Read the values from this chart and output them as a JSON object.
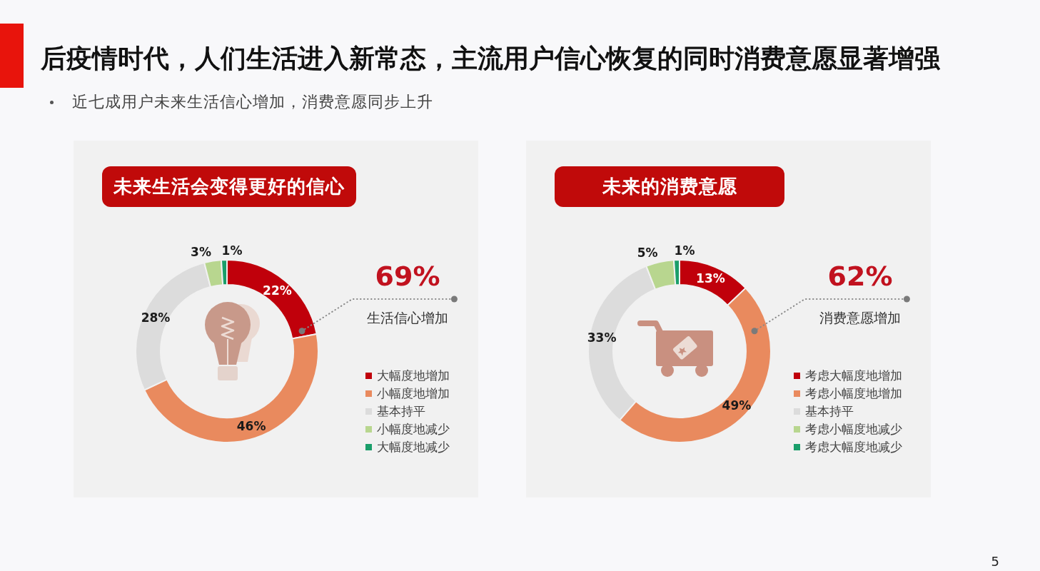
{
  "chart_data": [
    {
      "type": "other",
      "title": "后疫情时代，人们生活进入新常态，主流用户信心恢复的同时消费意愿显著增强",
      "subtitle": "近七成用户未来生活信心增加，消费意愿同步上升",
      "annotations": [
        "5"
      ]
    },
    {
      "type": "donut",
      "title": "未来生活会变得更好的信心",
      "categories": [
        "大幅度地增加",
        "小幅度地增加",
        "基本持平",
        "小幅度地减少",
        "大幅度地减少"
      ],
      "values": [
        22,
        46,
        28,
        3,
        1
      ],
      "colors": [
        "#c0000b",
        "#e98a5e",
        "#dcdcdc",
        "#b8d68f",
        "#1a9e6a"
      ],
      "value_labels": [
        "22%",
        "46%",
        "28%",
        "3%",
        "1%"
      ],
      "legend": "bottom right",
      "annotations": [
        "69%",
        "生活信心增加"
      ]
    },
    {
      "type": "donut",
      "title": "未来的消费意愿",
      "categories": [
        "考虑大幅度地增加",
        "考虑小幅度地增加",
        "基本持平",
        "考虑小幅度地减少",
        "考虑大幅度地减少"
      ],
      "values": [
        13,
        49,
        33,
        5,
        1
      ],
      "colors": [
        "#c0000b",
        "#e98a5e",
        "#dcdcdc",
        "#b8d68f",
        "#1a9e6a"
      ],
      "value_labels": [
        "13%",
        "49%",
        "33%",
        "5%",
        "1%"
      ],
      "legend": "bottom right",
      "annotations": [
        "62%",
        "消费意愿增加"
      ]
    }
  ]
}
